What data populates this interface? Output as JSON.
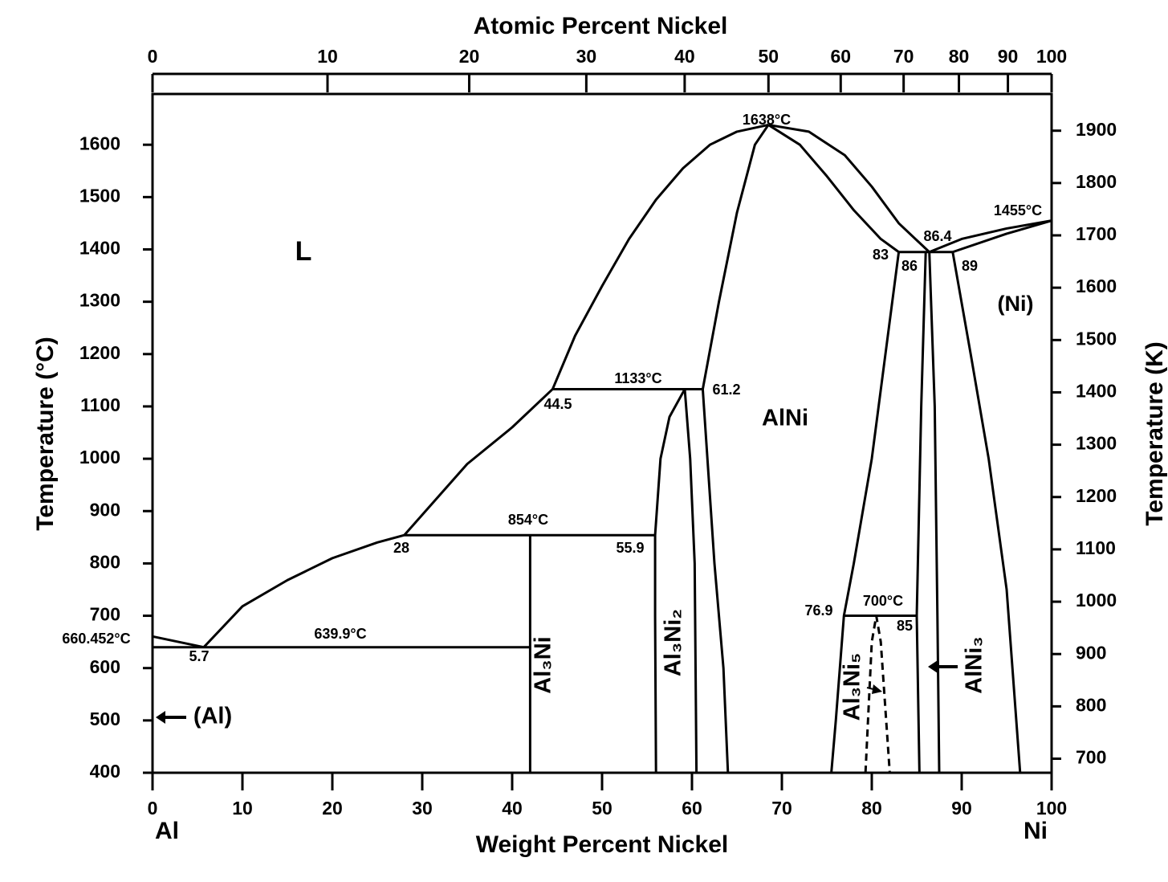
{
  "chart_data": {
    "type": "phase-diagram",
    "xlabel": "Weight Percent Nickel",
    "x2label": "Atomic Percent Nickel",
    "ylabel": "Temperature (°C)",
    "y2label": "Temperature (K)",
    "xlim": [
      0,
      100
    ],
    "xticks": [
      0,
      10,
      20,
      30,
      40,
      50,
      60,
      70,
      80,
      90,
      100
    ],
    "x2ticks": [
      0,
      10,
      20,
      30,
      40,
      50,
      60,
      70,
      80,
      90,
      100
    ],
    "ylim": [
      400,
      1697
    ],
    "yticks": [
      400,
      500,
      600,
      700,
      800,
      900,
      1000,
      1100,
      1200,
      1300,
      1400,
      1500,
      1600
    ],
    "y2lim": [
      673.15,
      1970.15
    ],
    "y2ticks": [
      700,
      800,
      900,
      1000,
      1100,
      1200,
      1300,
      1400,
      1500,
      1600,
      1700,
      1800,
      1900
    ],
    "color": "#000000",
    "ends": [
      "Al",
      "Ni"
    ],
    "boundaries": [
      {
        "x": [
          0,
          5.7
        ],
        "y": [
          660.452,
          639.9
        ]
      },
      {
        "x": [
          5.7,
          10,
          15,
          20,
          25,
          28
        ],
        "y": [
          639.9,
          718,
          768,
          810,
          840,
          854
        ]
      },
      {
        "x": [
          28,
          35,
          40,
          44.5
        ],
        "y": [
          854,
          990,
          1060,
          1133
        ]
      },
      {
        "x": [
          44.5,
          47,
          50,
          53,
          56,
          59,
          62,
          65,
          68.5
        ],
        "y": [
          1133,
          1235,
          1330,
          1420,
          1495,
          1555,
          1600,
          1625,
          1638
        ]
      },
      {
        "x": [
          68.5,
          73,
          77,
          80,
          83,
          86.4
        ],
        "y": [
          1638,
          1625,
          1580,
          1520,
          1450,
          1395
        ]
      },
      {
        "x": [
          68.5,
          72,
          75,
          78,
          81,
          83
        ],
        "y": [
          1638,
          1600,
          1540,
          1475,
          1420,
          1395
        ]
      },
      {
        "x": [
          83,
          89
        ],
        "y": [
          1395,
          1395
        ]
      },
      {
        "x": [
          86.4,
          90,
          95,
          100
        ],
        "y": [
          1395,
          1420,
          1440,
          1455
        ]
      },
      {
        "x": [
          89,
          95,
          100
        ],
        "y": [
          1395,
          1430,
          1455
        ]
      },
      {
        "x": [
          68.5,
          67,
          65,
          63,
          61.2,
          62.5,
          63.5,
          64
        ],
        "y": [
          1638,
          1600,
          1470,
          1300,
          1133,
          800,
          600,
          400
        ]
      },
      {
        "x": [
          83,
          80,
          78,
          76.9,
          76,
          75.5
        ],
        "y": [
          1395,
          1000,
          800,
          700,
          500,
          400
        ]
      },
      {
        "x": [
          86,
          85.5,
          85,
          85.3
        ],
        "y": [
          1395,
          1100,
          700,
          400
        ]
      },
      {
        "x": [
          86.4,
          87,
          87.3,
          87.5
        ],
        "y": [
          1395,
          1100,
          700,
          400
        ]
      },
      {
        "x": [
          89,
          91,
          93,
          95,
          96.5
        ],
        "y": [
          1395,
          1200,
          1000,
          750,
          400
        ]
      },
      {
        "x": [
          56,
          55.9,
          55.9,
          56.5,
          57.5,
          59.2
        ],
        "y": [
          400,
          700,
          854,
          1000,
          1080,
          1133
        ]
      },
      {
        "x": [
          59.2,
          59.8,
          60.3,
          60.5
        ],
        "y": [
          1133,
          1000,
          800,
          400
        ]
      },
      {
        "x": [
          44.5,
          61.2
        ],
        "y": [
          1133,
          1133
        ]
      },
      {
        "x": [
          28,
          55.9
        ],
        "y": [
          854,
          854
        ]
      },
      {
        "x": [
          42,
          42
        ],
        "y": [
          854,
          400
        ]
      },
      {
        "x": [
          0,
          42
        ],
        "y": [
          639.9,
          639.9
        ]
      },
      {
        "x": [
          76.9,
          85
        ],
        "y": [
          700,
          700
        ]
      },
      {
        "x": [
          79.3,
          80,
          80.5,
          81,
          82
        ],
        "y": [
          400,
          650,
          700,
          650,
          400
        ],
        "style": "dashed"
      }
    ],
    "annotations": [
      "1638°C",
      "1455°C",
      "86.4",
      "83",
      "86",
      "89",
      "(Ni)",
      "L",
      "1133°C",
      "44.5",
      "61.2",
      "AlNi",
      "854°C",
      "28",
      "55.9",
      "76.9",
      "700°C",
      "85",
      "660.452°C",
      "639.9°C",
      "5.7",
      "(Al)",
      "Al₃Ni",
      "Al₃Ni₂",
      "Al₃Ni₅",
      "AlNi₃"
    ]
  }
}
